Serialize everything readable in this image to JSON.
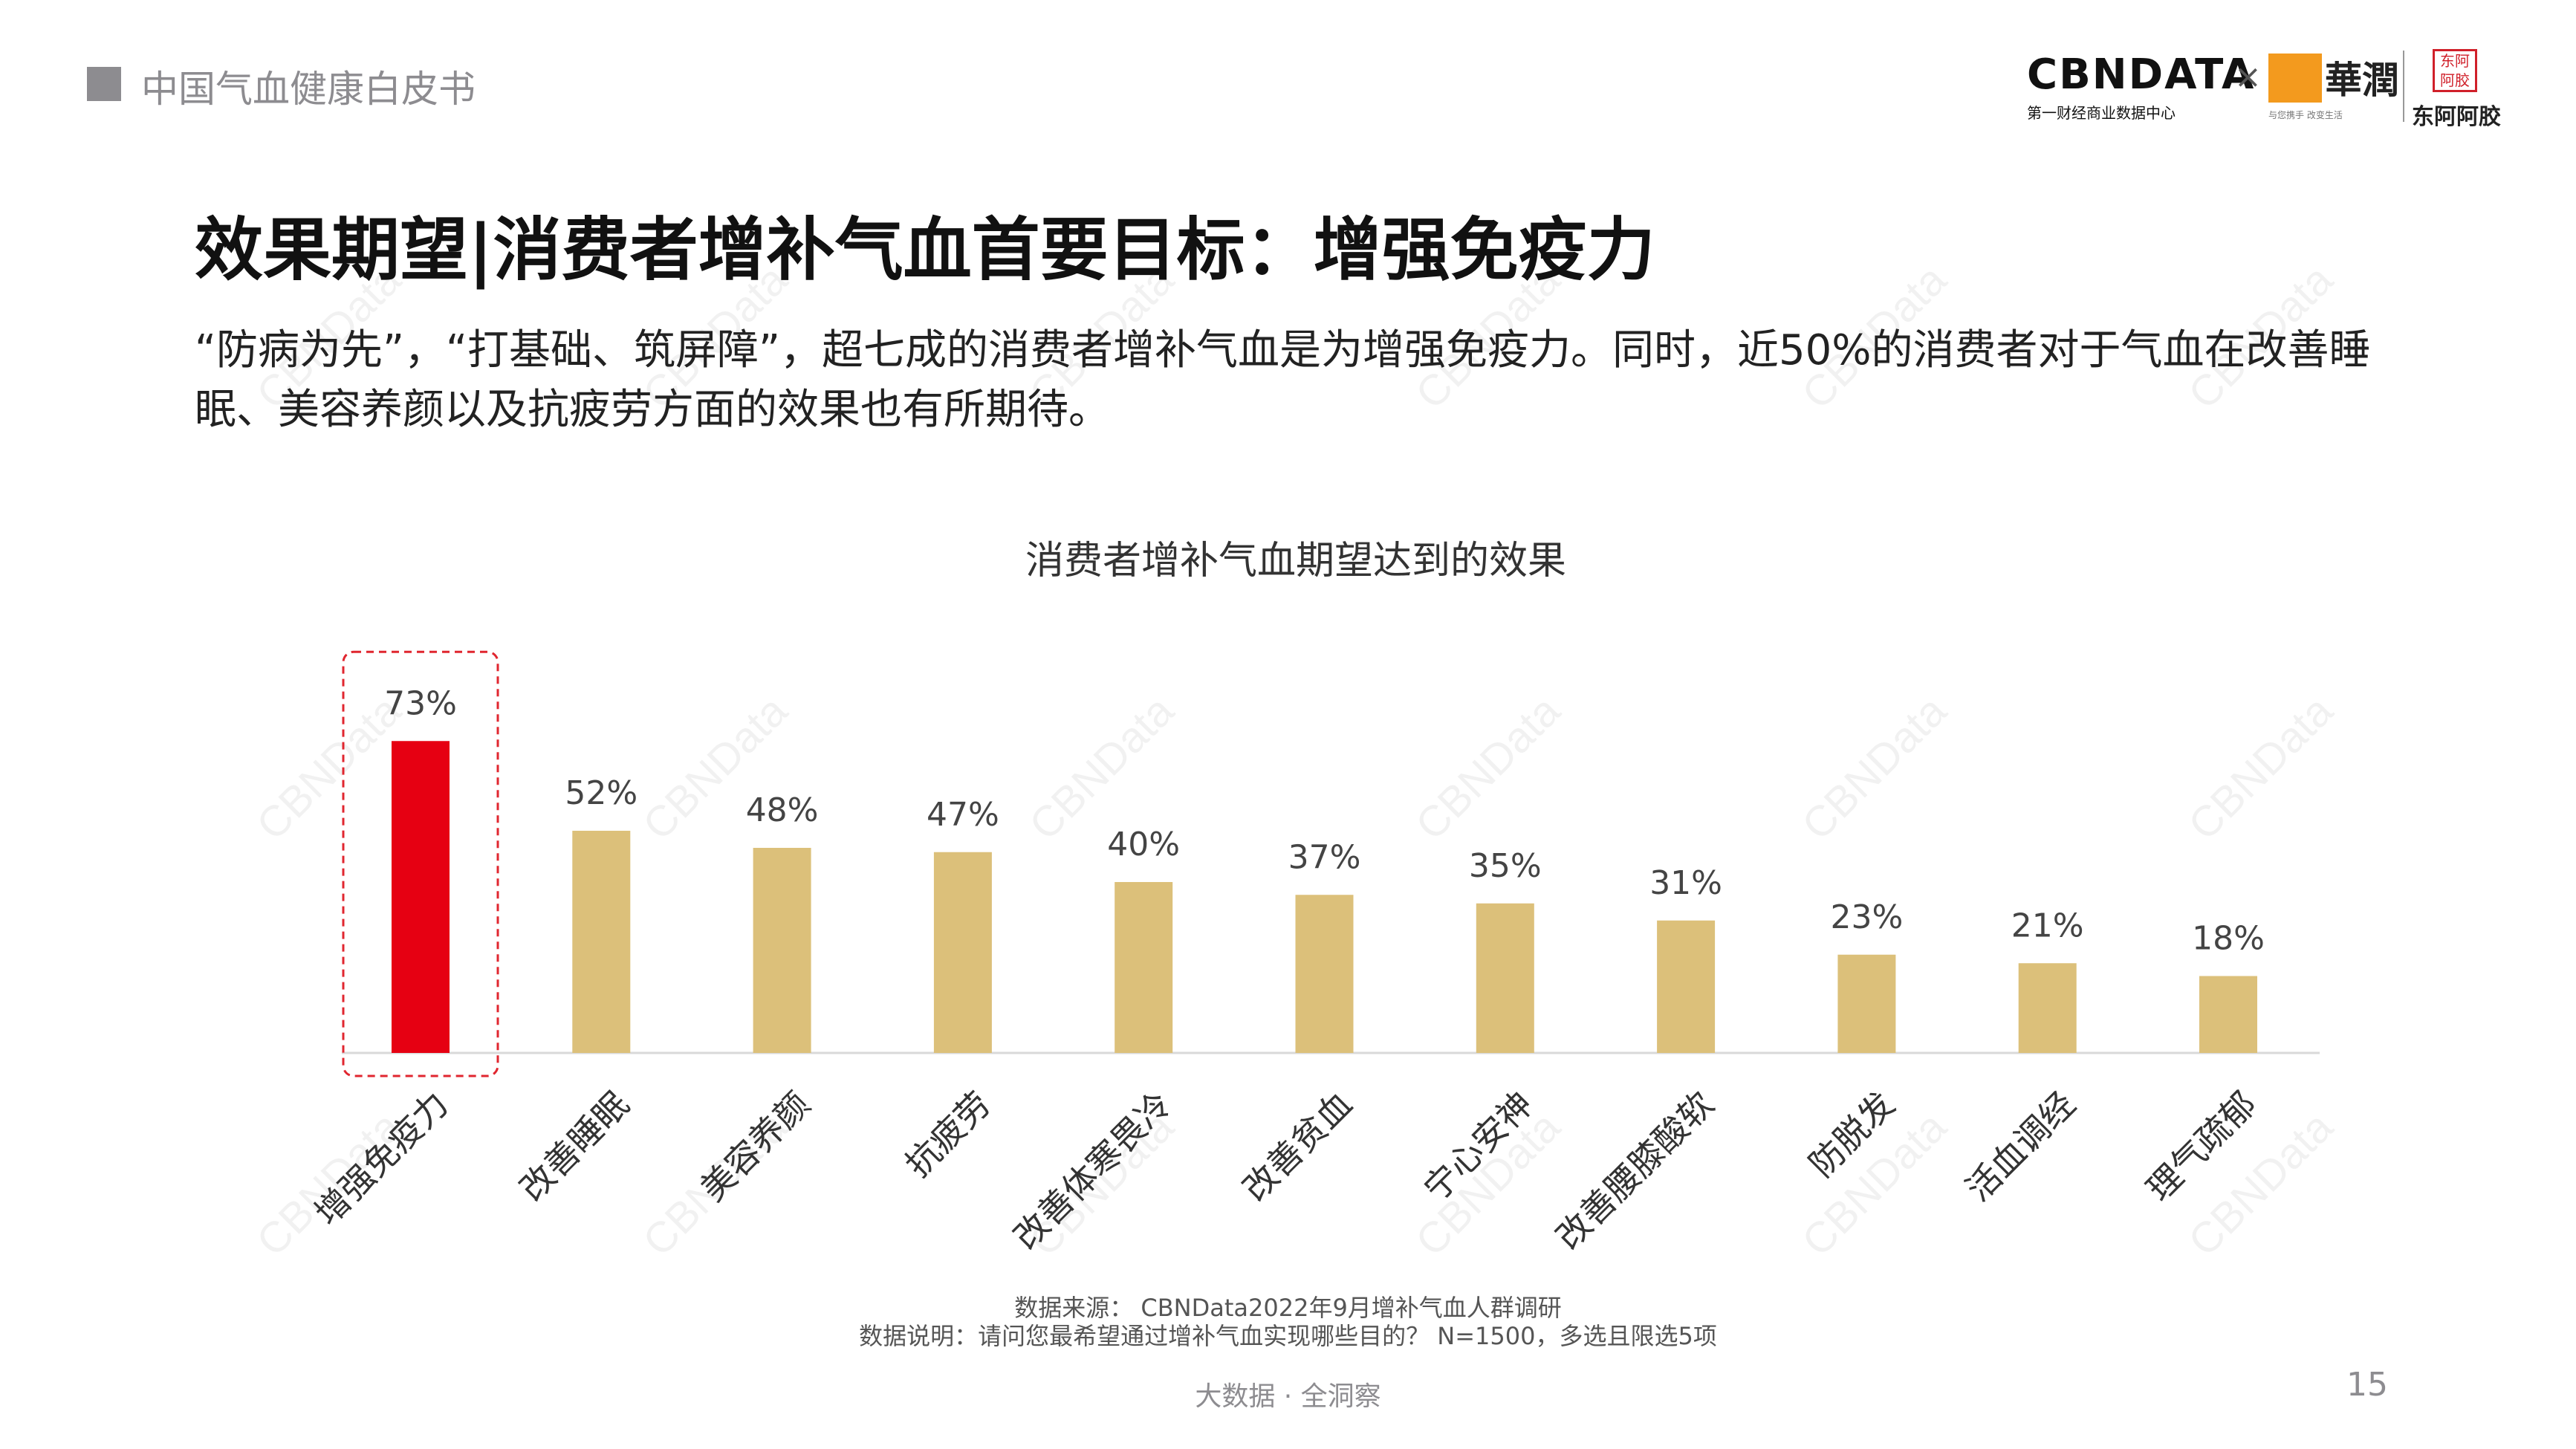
{
  "header": {
    "title": "中国气血健康白皮书"
  },
  "logos": {
    "cbndata": {
      "name": "CBNDATA",
      "subtitle": "第一财经商业数据中心"
    },
    "separator": "×",
    "huarun": {
      "name": "華潤",
      "slogan": "与您携手 改变生活"
    },
    "dongeejiao": {
      "seal": "东阿阿胶",
      "name": "东阿阿胶"
    }
  },
  "page_title": "效果期望|消费者增补气血首要目标：增强免疫力",
  "intro": "“防病为先”，“打基础、筑屏障”，超七成的消费者增补气血是为增强免疫力。同时，近50%的消费者对于气血在改善睡眠、美容养颜以及抗疲劳方面的效果也有所期待。",
  "chart_data": {
    "type": "bar",
    "title": "消费者增补气血期望达到的效果",
    "categories": [
      "增强免疫力",
      "改善睡眠",
      "美容养颜",
      "抗疲劳",
      "改善体寒畏冷",
      "改善贫血",
      "宁心安神",
      "改善腰膝酸软",
      "防脱发",
      "活血调经",
      "理气疏郁"
    ],
    "values": [
      73,
      52,
      48,
      47,
      40,
      37,
      35,
      31,
      23,
      21,
      18
    ],
    "value_labels": [
      "73%",
      "52%",
      "48%",
      "47%",
      "40%",
      "37%",
      "35%",
      "31%",
      "23%",
      "21%",
      "18%"
    ],
    "unit": "%",
    "ylim": [
      0,
      100
    ],
    "grid": false,
    "legend": "none",
    "highlight_index": 0,
    "colors": {
      "highlight": "#e60012",
      "default": "#dcc07a",
      "highlight_box": "#e0262f",
      "axis": "#d9d9d9"
    }
  },
  "source": {
    "line1": "数据来源： CBNData2022年9月增补气血人群调研",
    "line2": "数据说明：请问您最希望通过增补气血实现哪些目的？ N=1500，多选且限选5项"
  },
  "footer": {
    "center": "大数据 · 全洞察",
    "page_number": "15"
  },
  "watermark": "CBNData"
}
